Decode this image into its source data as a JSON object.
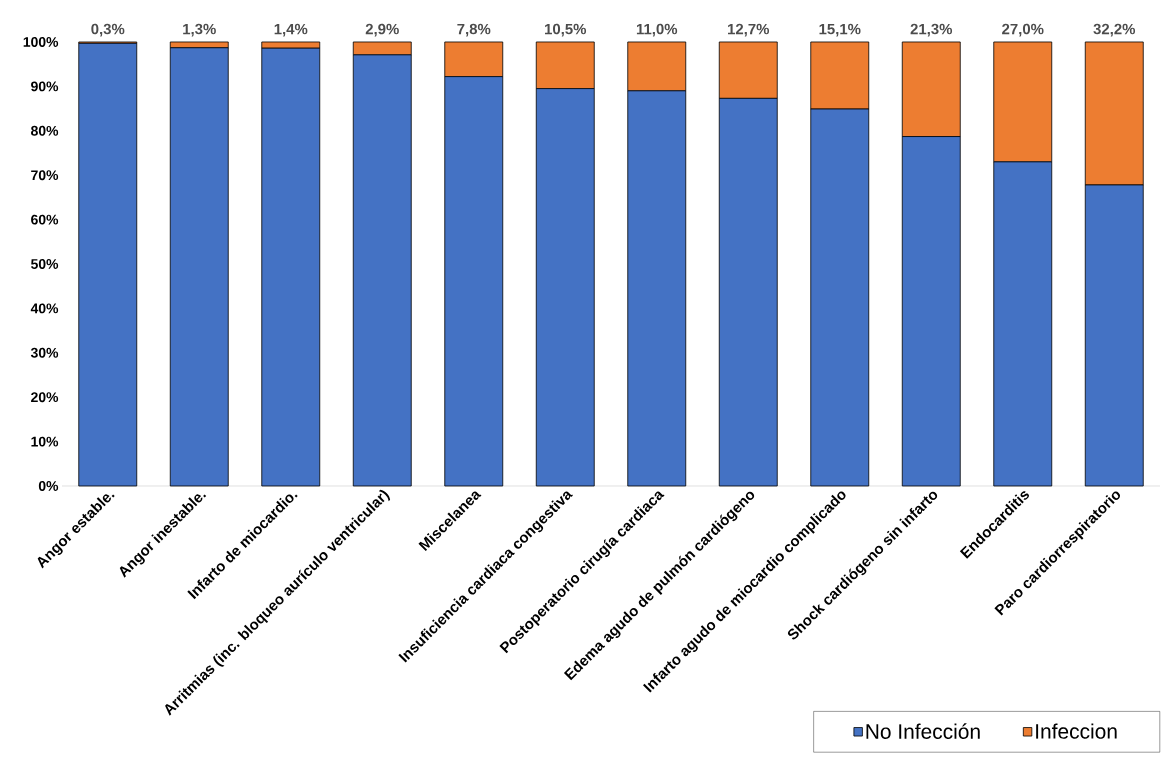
{
  "chart_data": {
    "type": "bar",
    "stacked": true,
    "legend": "bottom right",
    "categories": [
      "Angor estable.",
      "Angor inestable.",
      "Infarto de miocardio.",
      "Arritmias (inc. bloqueo aurículo ventricular)",
      "Miscelanea",
      "Insuficiencia cardiaca congestiva",
      "Postoperatorio cirugía cardiaca",
      "Edema agudo de pulmón cardiógeno",
      "Infarto agudo de miocardio complicado",
      "Shock cardiógeno sin infarto",
      "Endocarditis",
      "Paro cardiorrespiratorio"
    ],
    "series": [
      {
        "name": "No Infección",
        "color": "#4472c4",
        "values": [
          99.7,
          98.7,
          98.6,
          97.1,
          92.2,
          89.5,
          89.0,
          87.3,
          84.9,
          78.7,
          73.0,
          67.8
        ]
      },
      {
        "name": "Infeccion",
        "color": "#ed7d31",
        "values": [
          0.3,
          1.3,
          1.4,
          2.9,
          7.8,
          10.5,
          11.0,
          12.7,
          15.1,
          21.3,
          27.0,
          32.2
        ],
        "value_labels": [
          "0,3%",
          "1,3%",
          "1,4%",
          "2,9%",
          "7,8%",
          "10,5%",
          "11,0%",
          "12,7%",
          "15,1%",
          "21,3%",
          "27,0%",
          "32,2%"
        ]
      }
    ],
    "ylim": [
      0,
      100
    ],
    "yticks": [
      {
        "value": 0,
        "label": "0%"
      },
      {
        "value": 10,
        "label": "10%"
      },
      {
        "value": 20,
        "label": "20%"
      },
      {
        "value": 30,
        "label": "30%"
      },
      {
        "value": 40,
        "label": "40%"
      },
      {
        "value": 50,
        "label": "50%"
      },
      {
        "value": 60,
        "label": "60%"
      },
      {
        "value": 70,
        "label": "70%"
      },
      {
        "value": 80,
        "label": "80%"
      },
      {
        "value": 90,
        "label": "90%"
      },
      {
        "value": 100,
        "label": "100%"
      }
    ]
  }
}
